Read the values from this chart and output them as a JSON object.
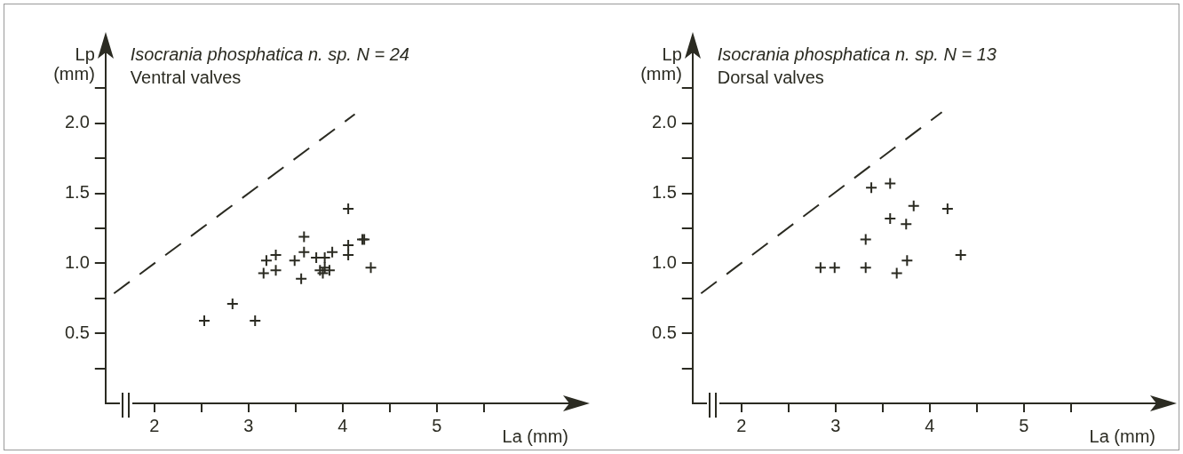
{
  "chart_data": [
    {
      "type": "scatter",
      "title": "Isocrania phosphatica n. sp. N = 24",
      "subtitle": "Ventral valves",
      "xlabel": "La (mm)",
      "ylabel": "Lp (mm)",
      "xlim": [
        1.48,
        6.4
      ],
      "ylim": [
        0,
        2.5
      ],
      "xticks": [
        {
          "value": 2,
          "label": "2"
        },
        {
          "value": 2.5,
          "label": null
        },
        {
          "value": 3,
          "label": "3"
        },
        {
          "value": 3.5,
          "label": null
        },
        {
          "value": 4,
          "label": "4"
        },
        {
          "value": 4.5,
          "label": null
        },
        {
          "value": 5,
          "label": "5"
        },
        {
          "value": 5.5,
          "label": null
        }
      ],
      "yticks": [
        {
          "value": 0.25,
          "label": null
        },
        {
          "value": 0.5,
          "label": "0.5"
        },
        {
          "value": 0.75,
          "label": null
        },
        {
          "value": 1,
          "label": "1.0"
        },
        {
          "value": 1.25,
          "label": null
        },
        {
          "value": 1.5,
          "label": "1.5"
        },
        {
          "value": 1.75,
          "label": null
        },
        {
          "value": 2,
          "label": "2.0"
        },
        {
          "value": 2.25,
          "label": null
        }
      ],
      "grid": false,
      "legend": false,
      "marker": "cross",
      "series": [
        {
          "color": "#2b2b22",
          "x": [
            2.53,
            2.83,
            3.07,
            3.16,
            3.19,
            3.29,
            3.29,
            3.49,
            3.56,
            3.59,
            3.59,
            3.72,
            3.81,
            3.76,
            3.81,
            3.79,
            3.86,
            3.89,
            4.06,
            4.06,
            4.06,
            4.21,
            4.23,
            4.3
          ],
          "values": [
            0.59,
            0.71,
            0.59,
            0.93,
            1.02,
            0.95,
            1.06,
            1.02,
            0.89,
            1.19,
            1.08,
            1.04,
            1.04,
            0.95,
            0.97,
            0.93,
            0.95,
            1.08,
            1.13,
            1.06,
            1.39,
            1.17,
            1.17,
            0.97
          ]
        },
        {
          "type": "line",
          "color": "#2b2b22",
          "line_style": "dashed",
          "marker": "none",
          "x": [
            1.57,
            4.13
          ],
          "values": [
            0.785,
            2.065
          ]
        }
      ]
    },
    {
      "type": "scatter",
      "title": "Isocrania phosphatica n. sp. N = 13",
      "subtitle": "Dorsal valves",
      "xlabel": "La (mm)",
      "ylabel": "Lp (mm)",
      "xlim": [
        1.48,
        6.4
      ],
      "ylim": [
        0,
        2.5
      ],
      "xticks": [
        {
          "value": 2,
          "label": "2"
        },
        {
          "value": 2.5,
          "label": null
        },
        {
          "value": 3,
          "label": "3"
        },
        {
          "value": 3.5,
          "label": null
        },
        {
          "value": 4,
          "label": "4"
        },
        {
          "value": 4.5,
          "label": null
        },
        {
          "value": 5,
          "label": "5"
        },
        {
          "value": 5.5,
          "label": null
        }
      ],
      "yticks": [
        {
          "value": 0.25,
          "label": null
        },
        {
          "value": 0.5,
          "label": "0.5"
        },
        {
          "value": 0.75,
          "label": null
        },
        {
          "value": 1,
          "label": "1.0"
        },
        {
          "value": 1.25,
          "label": null
        },
        {
          "value": 1.5,
          "label": "1.5"
        },
        {
          "value": 1.75,
          "label": null
        },
        {
          "value": 2,
          "label": "2.0"
        },
        {
          "value": 2.25,
          "label": null
        }
      ],
      "grid": false,
      "legend": false,
      "marker": "cross",
      "series": [
        {
          "color": "#2b2b22",
          "x": [
            2.84,
            2.99,
            3.32,
            3.32,
            3.38,
            3.58,
            3.58,
            3.75,
            3.83,
            3.76,
            3.65,
            4.19,
            4.33
          ],
          "values": [
            0.97,
            0.97,
            0.97,
            1.17,
            1.54,
            1.57,
            1.32,
            1.28,
            1.41,
            1.02,
            0.93,
            1.39,
            1.06
          ]
        },
        {
          "type": "line",
          "color": "#2b2b22",
          "line_style": "dashed",
          "marker": "none",
          "x": [
            1.57,
            4.13
          ],
          "values": [
            0.785,
            2.08
          ]
        }
      ]
    }
  ]
}
